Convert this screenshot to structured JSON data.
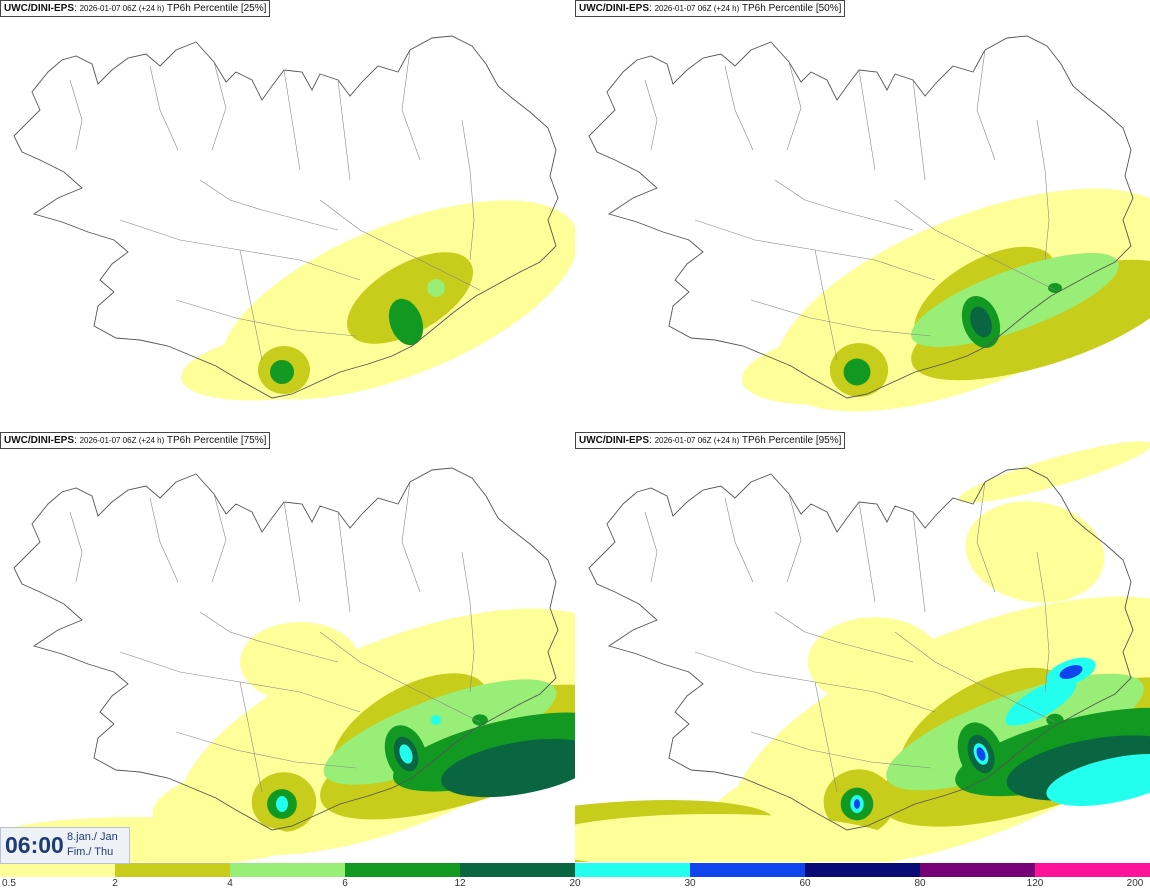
{
  "panels": [
    {
      "source": "UWC/DINI-EPS",
      "run": "2026-01-07 06Z (+24 h)",
      "field": "TP6h Percentile [25%]",
      "level": 1
    },
    {
      "source": "UWC/DINI-EPS",
      "run": "2026-01-07 06Z (+24 h)",
      "field": "TP6h Percentile [50%]",
      "level": 2
    },
    {
      "source": "UWC/DINI-EPS",
      "run": "2026-01-07 06Z (+24 h)",
      "field": "TP6h Percentile [75%]",
      "level": 3
    },
    {
      "source": "UWC/DINI-EPS",
      "run": "2026-01-07 06Z (+24 h)",
      "field": "TP6h Percentile [95%]",
      "level": 4
    }
  ],
  "time": {
    "hour": "06:00",
    "date": "8.jan./ Jan",
    "weekday": "Fim./ Thu"
  },
  "scale": {
    "ticks": [
      "0.5",
      "2",
      "4",
      "6",
      "12",
      "20",
      "30",
      "60",
      "80",
      "120",
      "200"
    ],
    "colors": [
      "#ffff99",
      "#c8cc1a",
      "#99ee77",
      "#119922",
      "#0a6641",
      "#22ffee",
      "#1144ee",
      "#0a0a77",
      "#770077",
      "#ff1199",
      "#ee0011"
    ]
  }
}
